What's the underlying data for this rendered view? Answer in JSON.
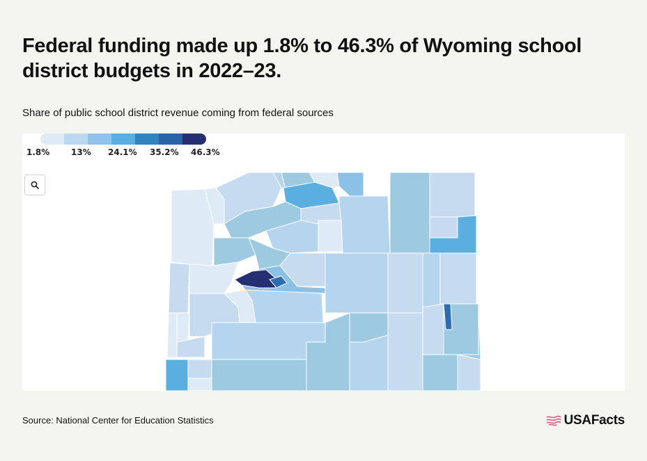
{
  "header": {
    "title": "Federal funding made up 1.8% to 46.3% of Wyoming school district budgets in 2022–23.",
    "subtitle": "Share of public school district revenue coming from federal sources"
  },
  "legend": {
    "labels": [
      "1.8%",
      "13%",
      "24.1%",
      "35.2%",
      "46.3%"
    ],
    "colors": [
      "#deebf7",
      "#c6dbef",
      "#9ecae1",
      "#6baed6",
      "#3182bd",
      "#2f6db3",
      "#2b5aa3",
      "#232f70"
    ]
  },
  "map": {
    "zoom_icon": "search-icon",
    "palette": {
      "c1": "#deebf7",
      "c2": "#c6dbef",
      "c3": "#b5d4ee",
      "c4": "#9ecae1",
      "c5": "#8dc0e6",
      "c6": "#5aaee0",
      "c7": "#2f6db3",
      "c8": "#232f70"
    }
  },
  "footer": {
    "source": "Source: National Center for Education Statistics",
    "brand": "USAFacts"
  }
}
